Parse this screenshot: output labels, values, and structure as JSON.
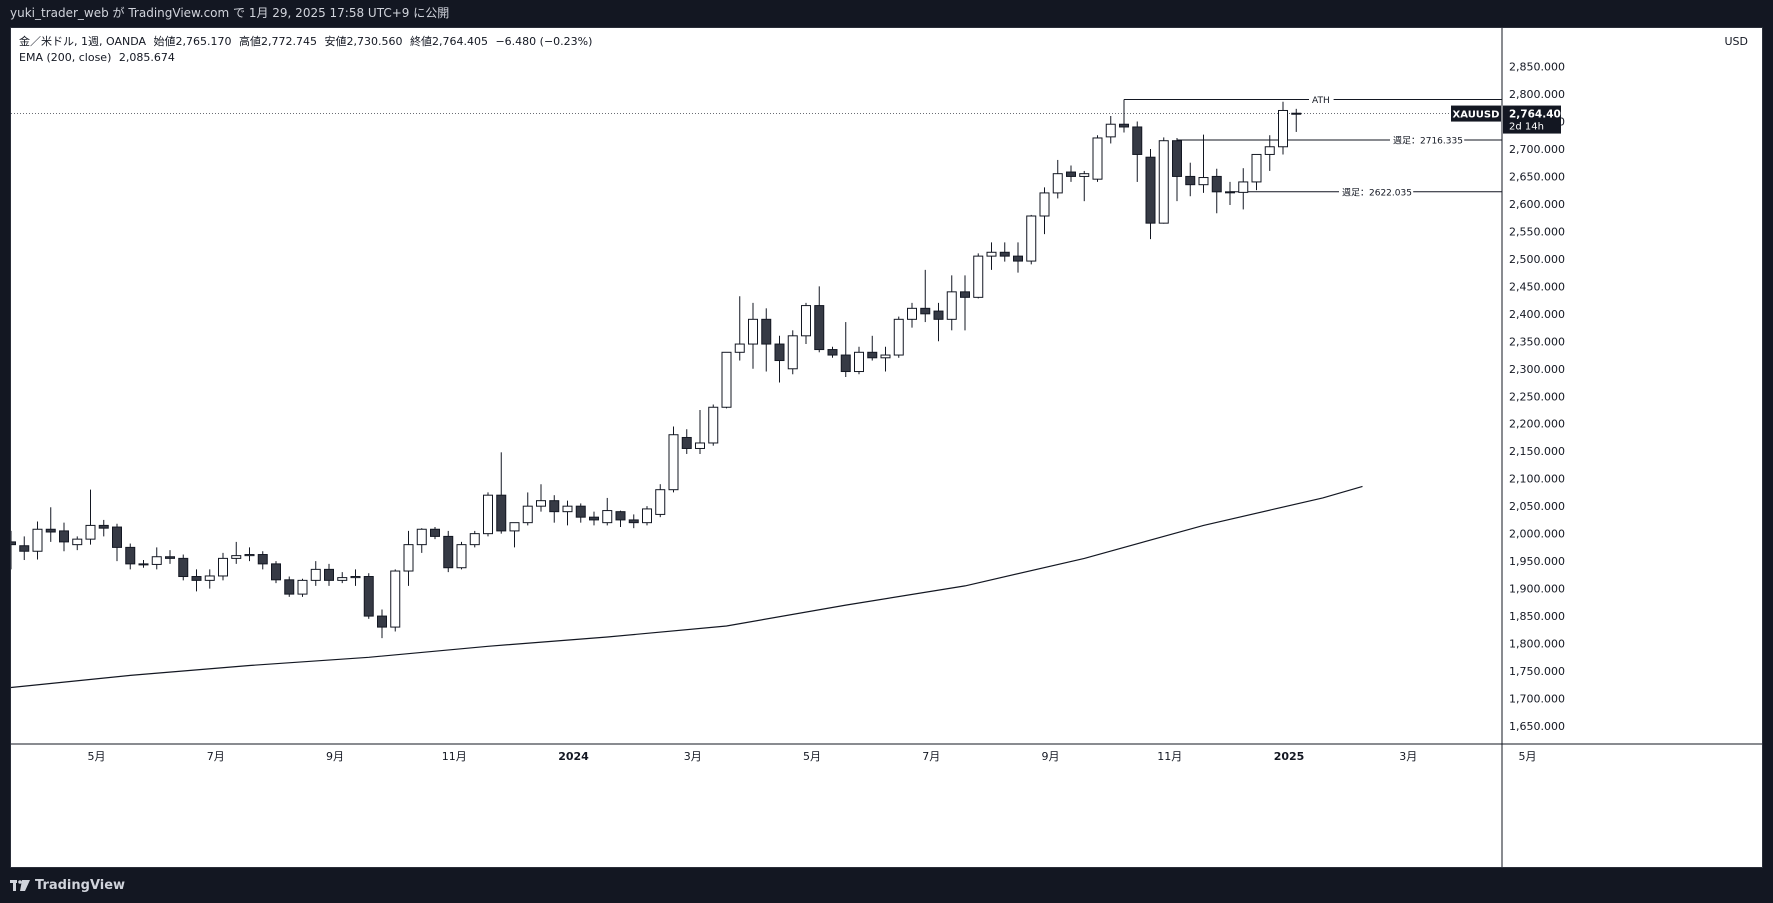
{
  "header": {
    "text": "yuki_trader_web が TradingView.com で 1月 29, 2025 17:58 UTC+9 に公開"
  },
  "legend": {
    "symbol": "金／米ドル, 1週, OANDA",
    "open": "始値2,765.170",
    "high": "高値2,772.745",
    "low": "安値2,730.560",
    "close": "終値2,764.405",
    "change": "−6.480 (−0.23%)",
    "ema": "EMA (200, close)",
    "ema_value": "2,085.674"
  },
  "price_scale": {
    "currency": "USD"
  },
  "price_label": {
    "symbol": "XAUUSD",
    "price": "2,764.405",
    "countdown": "2d 14h",
    "bg_color": "#131722",
    "text_color": "#ffffff"
  },
  "annotations": {
    "ath": "ATH",
    "line1": "週足：2716.335",
    "line2": "週足：2622.035"
  },
  "footer": {
    "brand": "TradingView"
  },
  "colors": {
    "bull_fill": "#ffffff",
    "bear_fill": "#363a45",
    "candle_border": "#131722",
    "ema_line": "#131722"
  },
  "chart_data": {
    "type": "candlestick",
    "title": "金／米ドル, 1週, OANDA",
    "ylabel": "USD",
    "ylim": [
      1620,
      2880
    ],
    "grid": false,
    "x_ticks": [
      {
        "label": "5月",
        "index": 6
      },
      {
        "label": "7月",
        "index": 15
      },
      {
        "label": "9月",
        "index": 24
      },
      {
        "label": "11月",
        "index": 33
      },
      {
        "label": "2024",
        "index": 42
      },
      {
        "label": "3月",
        "index": 51
      },
      {
        "label": "5月",
        "index": 60
      },
      {
        "label": "7月",
        "index": 69
      },
      {
        "label": "9月",
        "index": 78
      },
      {
        "label": "11月",
        "index": 87
      },
      {
        "label": "2025",
        "index": 96
      },
      {
        "label": "3月",
        "index": 105
      },
      {
        "label": "5月",
        "index": 114
      }
    ],
    "y_ticks": [
      1650,
      1700,
      1750,
      1800,
      1850,
      1900,
      1950,
      2000,
      2050,
      2100,
      2150,
      2200,
      2250,
      2300,
      2350,
      2400,
      2450,
      2500,
      2550,
      2600,
      2650,
      2700,
      2750,
      2800,
      2850
    ],
    "candles": [
      {
        "o": 1985,
        "h": 2005,
        "l": 1935,
        "c": 1980
      },
      {
        "o": 1978,
        "h": 1995,
        "l": 1952,
        "c": 1968
      },
      {
        "o": 1968,
        "h": 2022,
        "l": 1953,
        "c": 2008
      },
      {
        "o": 2008,
        "h": 2048,
        "l": 1985,
        "c": 2003
      },
      {
        "o": 2005,
        "h": 2020,
        "l": 1968,
        "c": 1985
      },
      {
        "o": 1980,
        "h": 1995,
        "l": 1970,
        "c": 1990
      },
      {
        "o": 1990,
        "h": 2080,
        "l": 1980,
        "c": 2015
      },
      {
        "o": 2015,
        "h": 2025,
        "l": 1995,
        "c": 2010
      },
      {
        "o": 2012,
        "h": 2018,
        "l": 1950,
        "c": 1975
      },
      {
        "o": 1975,
        "h": 1982,
        "l": 1935,
        "c": 1945
      },
      {
        "o": 1945,
        "h": 1952,
        "l": 1938,
        "c": 1944
      },
      {
        "o": 1944,
        "h": 1975,
        "l": 1935,
        "c": 1958
      },
      {
        "o": 1958,
        "h": 1970,
        "l": 1945,
        "c": 1955
      },
      {
        "o": 1955,
        "h": 1962,
        "l": 1915,
        "c": 1922
      },
      {
        "o": 1922,
        "h": 1935,
        "l": 1895,
        "c": 1915
      },
      {
        "o": 1915,
        "h": 1935,
        "l": 1900,
        "c": 1923
      },
      {
        "o": 1923,
        "h": 1965,
        "l": 1915,
        "c": 1955
      },
      {
        "o": 1955,
        "h": 1985,
        "l": 1945,
        "c": 1960
      },
      {
        "o": 1960,
        "h": 1975,
        "l": 1950,
        "c": 1962
      },
      {
        "o": 1962,
        "h": 1968,
        "l": 1935,
        "c": 1945
      },
      {
        "o": 1945,
        "h": 1950,
        "l": 1910,
        "c": 1916
      },
      {
        "o": 1916,
        "h": 1922,
        "l": 1885,
        "c": 1890
      },
      {
        "o": 1890,
        "h": 1918,
        "l": 1885,
        "c": 1915
      },
      {
        "o": 1915,
        "h": 1950,
        "l": 1905,
        "c": 1935
      },
      {
        "o": 1935,
        "h": 1945,
        "l": 1905,
        "c": 1915
      },
      {
        "o": 1915,
        "h": 1930,
        "l": 1910,
        "c": 1920
      },
      {
        "o": 1920,
        "h": 1935,
        "l": 1905,
        "c": 1922
      },
      {
        "o": 1922,
        "h": 1928,
        "l": 1845,
        "c": 1850
      },
      {
        "o": 1850,
        "h": 1862,
        "l": 1810,
        "c": 1830
      },
      {
        "o": 1830,
        "h": 1935,
        "l": 1822,
        "c": 1932
      },
      {
        "o": 1932,
        "h": 2005,
        "l": 1905,
        "c": 1980
      },
      {
        "o": 1980,
        "h": 2010,
        "l": 1965,
        "c": 2008
      },
      {
        "o": 2008,
        "h": 2012,
        "l": 1990,
        "c": 1995
      },
      {
        "o": 1995,
        "h": 2005,
        "l": 1930,
        "c": 1938
      },
      {
        "o": 1938,
        "h": 1985,
        "l": 1935,
        "c": 1980
      },
      {
        "o": 1980,
        "h": 2005,
        "l": 1975,
        "c": 2000
      },
      {
        "o": 2000,
        "h": 2075,
        "l": 1995,
        "c": 2070
      },
      {
        "o": 2070,
        "h": 2148,
        "l": 2000,
        "c": 2005
      },
      {
        "o": 2005,
        "h": 2020,
        "l": 1975,
        "c": 2020
      },
      {
        "o": 2020,
        "h": 2075,
        "l": 2015,
        "c": 2050
      },
      {
        "o": 2050,
        "h": 2090,
        "l": 2040,
        "c": 2060
      },
      {
        "o": 2060,
        "h": 2070,
        "l": 2020,
        "c": 2040
      },
      {
        "o": 2040,
        "h": 2060,
        "l": 2015,
        "c": 2050
      },
      {
        "o": 2050,
        "h": 2055,
        "l": 2020,
        "c": 2030
      },
      {
        "o": 2030,
        "h": 2040,
        "l": 2015,
        "c": 2025
      },
      {
        "o": 2020,
        "h": 2065,
        "l": 2015,
        "c": 2042
      },
      {
        "o": 2040,
        "h": 2042,
        "l": 2012,
        "c": 2025
      },
      {
        "o": 2025,
        "h": 2035,
        "l": 2010,
        "c": 2020
      },
      {
        "o": 2020,
        "h": 2050,
        "l": 2015,
        "c": 2045
      },
      {
        "o": 2035,
        "h": 2090,
        "l": 2030,
        "c": 2080
      },
      {
        "o": 2080,
        "h": 2195,
        "l": 2075,
        "c": 2180
      },
      {
        "o": 2175,
        "h": 2190,
        "l": 2145,
        "c": 2155
      },
      {
        "o": 2155,
        "h": 2225,
        "l": 2145,
        "c": 2165
      },
      {
        "o": 2165,
        "h": 2235,
        "l": 2160,
        "c": 2230
      },
      {
        "o": 2230,
        "h": 2330,
        "l": 2228,
        "c": 2330
      },
      {
        "o": 2330,
        "h": 2432,
        "l": 2315,
        "c": 2345
      },
      {
        "o": 2345,
        "h": 2420,
        "l": 2300,
        "c": 2390
      },
      {
        "o": 2390,
        "h": 2410,
        "l": 2295,
        "c": 2345
      },
      {
        "o": 2345,
        "h": 2360,
        "l": 2275,
        "c": 2315
      },
      {
        "o": 2300,
        "h": 2370,
        "l": 2290,
        "c": 2360
      },
      {
        "o": 2360,
        "h": 2420,
        "l": 2345,
        "c": 2415
      },
      {
        "o": 2415,
        "h": 2450,
        "l": 2330,
        "c": 2335
      },
      {
        "o": 2335,
        "h": 2340,
        "l": 2320,
        "c": 2325
      },
      {
        "o": 2325,
        "h": 2385,
        "l": 2285,
        "c": 2295
      },
      {
        "o": 2295,
        "h": 2340,
        "l": 2290,
        "c": 2330
      },
      {
        "o": 2330,
        "h": 2360,
        "l": 2315,
        "c": 2320
      },
      {
        "o": 2320,
        "h": 2340,
        "l": 2295,
        "c": 2325
      },
      {
        "o": 2325,
        "h": 2395,
        "l": 2320,
        "c": 2390
      },
      {
        "o": 2390,
        "h": 2420,
        "l": 2375,
        "c": 2410
      },
      {
        "o": 2410,
        "h": 2480,
        "l": 2385,
        "c": 2400
      },
      {
        "o": 2405,
        "h": 2420,
        "l": 2350,
        "c": 2390
      },
      {
        "o": 2390,
        "h": 2470,
        "l": 2370,
        "c": 2440
      },
      {
        "o": 2440,
        "h": 2470,
        "l": 2370,
        "c": 2430
      },
      {
        "o": 2430,
        "h": 2510,
        "l": 2428,
        "c": 2505
      },
      {
        "o": 2505,
        "h": 2530,
        "l": 2480,
        "c": 2512
      },
      {
        "o": 2512,
        "h": 2530,
        "l": 2495,
        "c": 2505
      },
      {
        "o": 2505,
        "h": 2530,
        "l": 2475,
        "c": 2496
      },
      {
        "o": 2496,
        "h": 2580,
        "l": 2490,
        "c": 2578
      },
      {
        "o": 2578,
        "h": 2630,
        "l": 2545,
        "c": 2620
      },
      {
        "o": 2620,
        "h": 2680,
        "l": 2610,
        "c": 2655
      },
      {
        "o": 2658,
        "h": 2670,
        "l": 2640,
        "c": 2650
      },
      {
        "o": 2650,
        "h": 2660,
        "l": 2605,
        "c": 2655
      },
      {
        "o": 2645,
        "h": 2725,
        "l": 2640,
        "c": 2720
      },
      {
        "o": 2722,
        "h": 2760,
        "l": 2710,
        "c": 2745
      },
      {
        "o": 2745,
        "h": 2790,
        "l": 2730,
        "c": 2740
      },
      {
        "o": 2740,
        "h": 2750,
        "l": 2640,
        "c": 2690
      },
      {
        "o": 2685,
        "h": 2700,
        "l": 2536,
        "c": 2565
      },
      {
        "o": 2565,
        "h": 2721,
        "l": 2564,
        "c": 2715
      },
      {
        "o": 2715,
        "h": 2720,
        "l": 2605,
        "c": 2650
      },
      {
        "o": 2650,
        "h": 2675,
        "l": 2614,
        "c": 2635
      },
      {
        "o": 2635,
        "h": 2726,
        "l": 2620,
        "c": 2648
      },
      {
        "o": 2650,
        "h": 2664,
        "l": 2583,
        "c": 2622
      },
      {
        "o": 2622,
        "h": 2640,
        "l": 2598,
        "c": 2621
      },
      {
        "o": 2621,
        "h": 2665,
        "l": 2590,
        "c": 2640
      },
      {
        "o": 2640,
        "h": 2690,
        "l": 2625,
        "c": 2690
      },
      {
        "o": 2690,
        "h": 2725,
        "l": 2660,
        "c": 2704
      },
      {
        "o": 2704,
        "h": 2786,
        "l": 2690,
        "c": 2770
      },
      {
        "o": 2765,
        "h": 2773,
        "l": 2731,
        "c": 2764
      }
    ],
    "ema_200": [
      {
        "index": 0,
        "value": 1720
      },
      {
        "index": 9,
        "value": 1742
      },
      {
        "index": 18,
        "value": 1760
      },
      {
        "index": 27,
        "value": 1775
      },
      {
        "index": 36,
        "value": 1795
      },
      {
        "index": 45,
        "value": 1812
      },
      {
        "index": 54,
        "value": 1832
      },
      {
        "index": 63,
        "value": 1870
      },
      {
        "index": 72,
        "value": 1905
      },
      {
        "index": 81,
        "value": 1955
      },
      {
        "index": 90,
        "value": 2015
      },
      {
        "index": 99,
        "value": 2065
      },
      {
        "index": 102,
        "value": 2086
      }
    ],
    "levels": [
      {
        "label": "ATH",
        "value": 2790,
        "start_index": 84
      },
      {
        "label": "週足：2716.335",
        "value": 2716.335,
        "start_index": 88
      },
      {
        "label": "週足：2622.035",
        "value": 2622.035,
        "start_index": 92
      }
    ],
    "last_price": 2764.405
  }
}
